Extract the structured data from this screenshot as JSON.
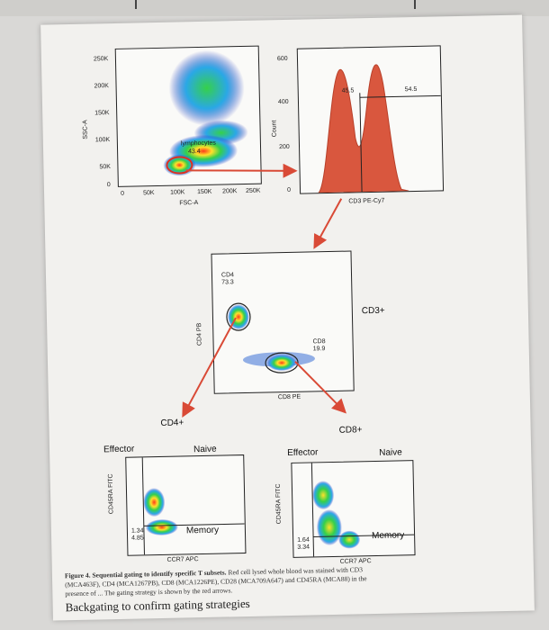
{
  "plot_fsc_ssc": {
    "y_axis_label": "SSC-A",
    "x_axis_label": "FSC-A",
    "y_ticks": [
      "250K",
      "200K",
      "150K",
      "100K",
      "50K",
      "0"
    ],
    "x_ticks": [
      "0",
      "50K",
      "100K",
      "150K",
      "200K",
      "250K"
    ],
    "gate_name": "lymphocytes",
    "gate_value": "43.4"
  },
  "plot_cd3_hist": {
    "y_axis_label": "Count",
    "x_axis_label": "CD3 PE-Cy7",
    "y_ticks": [
      "600",
      "400",
      "200",
      "0"
    ],
    "left_value": "45.5",
    "right_value": "54.5"
  },
  "plot_cd4_cd8": {
    "y_axis_label": "CD4 PB",
    "x_axis_label": "CD8 PE",
    "cd4_gate_name": "CD4",
    "cd4_gate_value": "73.3",
    "cd8_gate_name": "CD8",
    "cd8_gate_value": "19.9",
    "side_label": "CD3+"
  },
  "plot_cd4_subsets": {
    "title": "CD4+",
    "left_label": "Effector",
    "right_label": "Naive",
    "lower_label": "Memory",
    "y_axis_label": "CD45RA FITC",
    "x_axis_label": "CCR7 APC",
    "q1_value": "1.34",
    "q2_value": "4.85"
  },
  "plot_cd8_subsets": {
    "title": "CD8+",
    "left_label": "Effector",
    "right_label": "Naive",
    "lower_label": "Memory",
    "y_axis_label": "CD45RA FITC",
    "x_axis_label": "CCR7 APC",
    "q1_value": "1.64",
    "q2_value": "3.34"
  },
  "caption": {
    "line1_bold": "Figure 4. Sequential gating to identify specific T subsets.",
    "line1_rest": " Red cell lysed whole blood was stained with CD3",
    "line2": "(MCA463F), CD4 (MCA1267PB), CD8 (MCA1226PE), CD28 (MCA709A647) and CD45RA (MCA88) in the",
    "line3": "presence of ... The gating strategy is shown by the red arrows."
  },
  "headline": "Backgating to confirm gating strategies",
  "colors": {
    "arrow": "#d94a36",
    "histogram": "#d9573e"
  }
}
